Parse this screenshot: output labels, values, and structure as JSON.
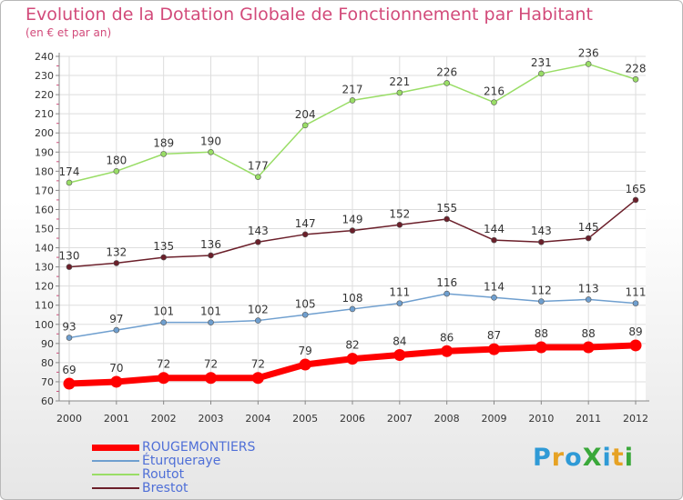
{
  "header": {
    "title": "Evolution de la Dotation Globale de Fonctionnement par Habitant",
    "subtitle": "(en € et par an)"
  },
  "logo": {
    "text": "ProXiti",
    "colors": [
      "#2f9ad6",
      "#e6a224",
      "#2f9ad6",
      "#3aa83a",
      "#2f9ad6",
      "#e6a224",
      "#3aa83a"
    ]
  },
  "chart_data": {
    "type": "line",
    "x": [
      "2000",
      "2001",
      "2002",
      "2003",
      "2004",
      "2005",
      "2006",
      "2007",
      "2008",
      "2009",
      "2010",
      "2011",
      "2012"
    ],
    "ylim": [
      60,
      240
    ],
    "yticks": [
      60,
      70,
      80,
      90,
      100,
      110,
      120,
      130,
      140,
      150,
      160,
      170,
      180,
      190,
      200,
      210,
      220,
      230,
      240
    ],
    "grid": true,
    "legend_position": "bottom-left",
    "series": [
      {
        "name": "ROUGEMONTIERS",
        "color": "#ff0000",
        "values": [
          69,
          70,
          72,
          72,
          72,
          79,
          82,
          84,
          86,
          87,
          88,
          88,
          89
        ]
      },
      {
        "name": "Éturqueraye",
        "color": "#6f9fcf",
        "values": [
          93,
          97,
          101,
          101,
          102,
          105,
          108,
          111,
          116,
          114,
          112,
          113,
          111
        ]
      },
      {
        "name": "Routot",
        "color": "#99dd66",
        "values": [
          174,
          180,
          189,
          190,
          177,
          204,
          217,
          221,
          226,
          216,
          231,
          236,
          228
        ]
      },
      {
        "name": "Brestot",
        "color": "#6b1f2a",
        "values": [
          130,
          132,
          135,
          136,
          143,
          147,
          149,
          152,
          155,
          144,
          143,
          145,
          165
        ]
      }
    ]
  }
}
